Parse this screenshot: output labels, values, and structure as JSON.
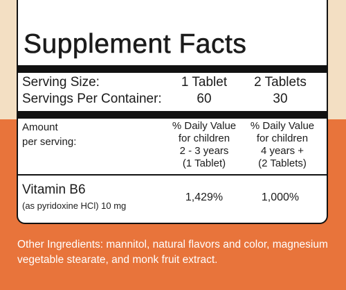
{
  "panel": {
    "title": "Supplement Facts",
    "serving_size_label": "Serving Size:",
    "serving_size_1": "1 Tablet",
    "serving_size_2": "2 Tablets",
    "servings_label": "Servings Per Container:",
    "servings_1": "60",
    "servings_2": "30",
    "amount_label": "Amount\nper serving:",
    "dv_col1": "% Daily Value\nfor children\n2 - 3 years\n(1 Tablet)",
    "dv_col2": "% Daily Value\nfor children\n4 years +\n(2 Tablets)",
    "nutrient_name": "Vitamin B6",
    "nutrient_source": "(as pyridoxine HCl) 10 mg",
    "nutrient_dv1": "1,429%",
    "nutrient_dv2": "1,000%"
  },
  "other_ingredients": "Other Ingredients: mannitol, natural flavors and color, magnesium vegetable stearate, and monk fruit extract.",
  "colors": {
    "beige": "#f3dfc3",
    "orange": "#e8743b",
    "panel": "#ffffff",
    "ink": "#111111"
  }
}
